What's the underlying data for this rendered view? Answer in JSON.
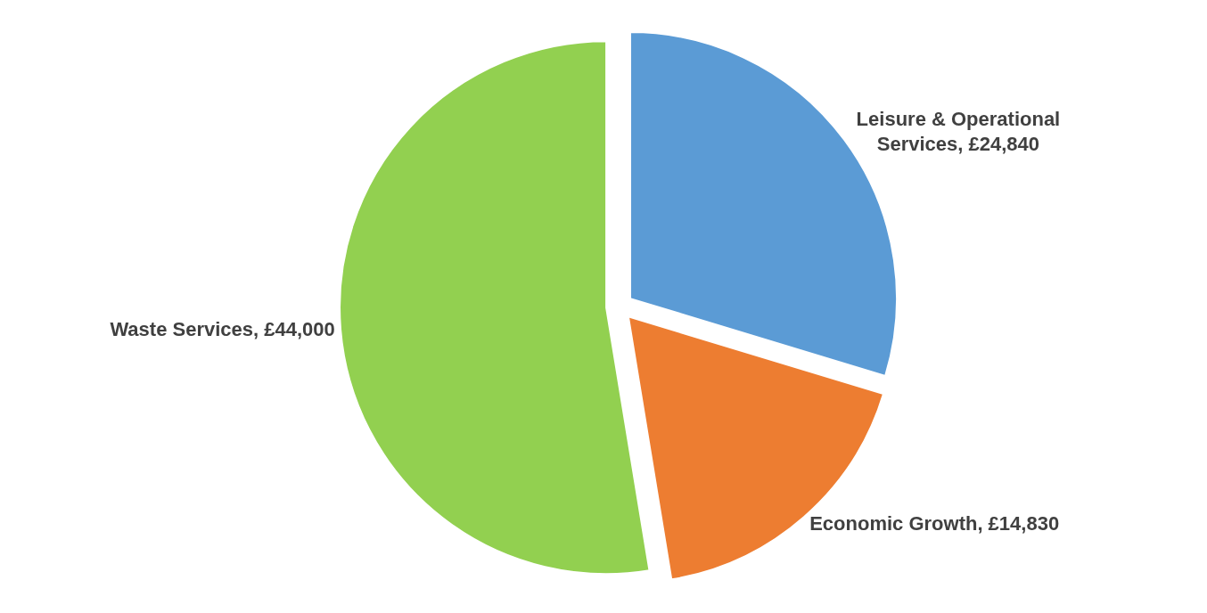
{
  "chart_data": {
    "type": "pie",
    "categories": [
      "Leisure & Operational Services",
      "Economic Growth",
      "Waste Services"
    ],
    "values": [
      24840,
      14830,
      44000
    ],
    "value_labels": [
      "£24,840",
      "£14,830",
      "£44,000"
    ],
    "colors": [
      "#5b9bd5",
      "#ed7d31",
      "#92d050"
    ],
    "legend": false
  }
}
